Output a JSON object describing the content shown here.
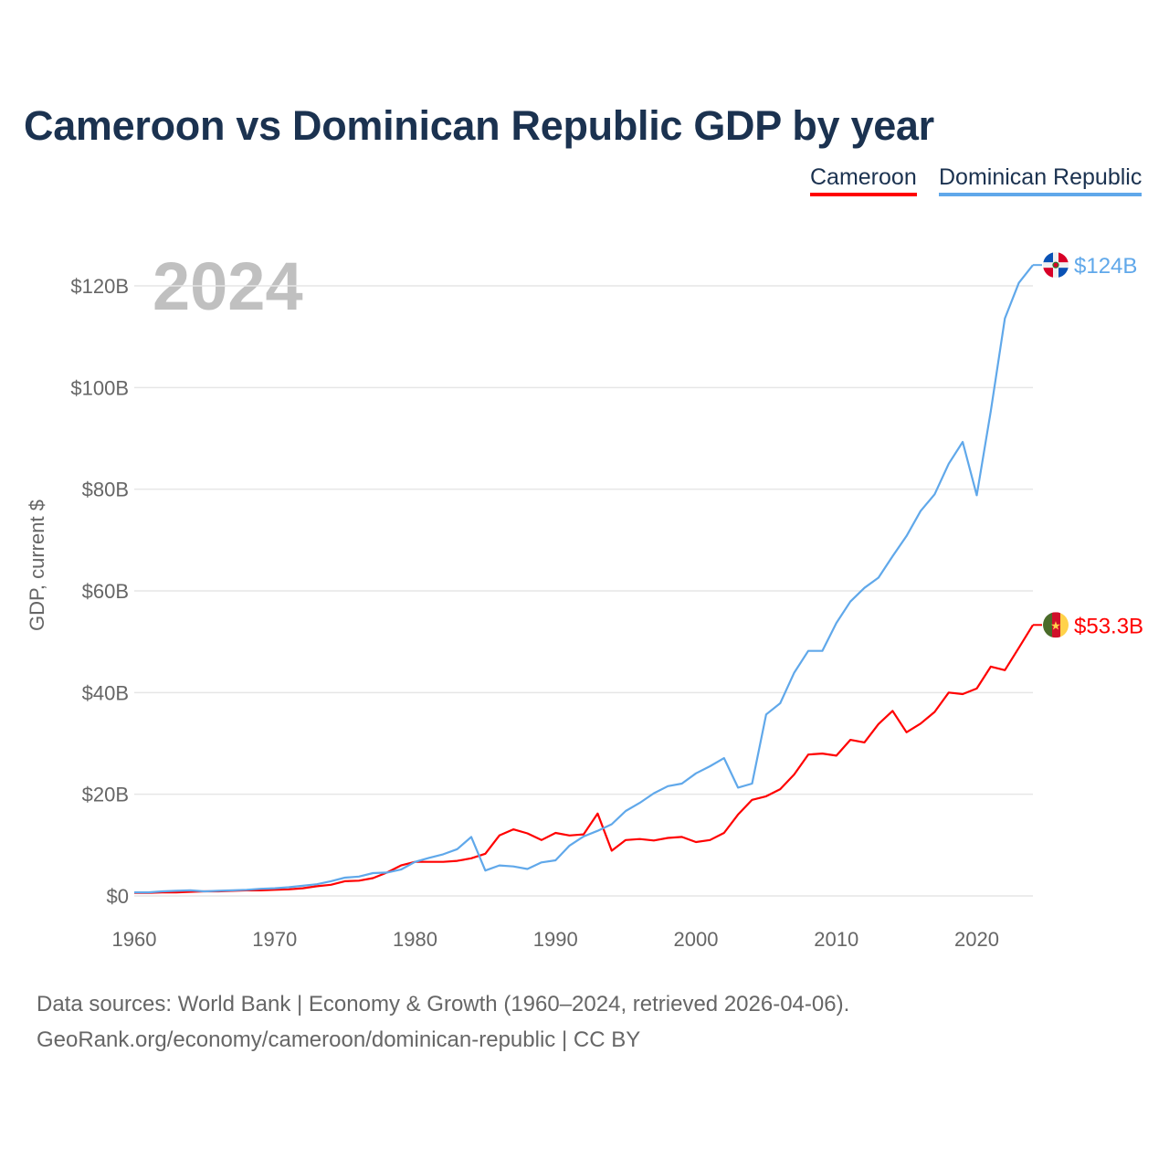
{
  "title": "Cameroon vs Dominican Republic GDP by year",
  "legend": [
    {
      "name": "Cameroon",
      "color": "#ff0000"
    },
    {
      "name": "Dominican Republic",
      "color": "#60a8ea"
    }
  ],
  "footer": {
    "source": "Data sources: World Bank | Economy & Growth (1960–2024, retrieved 2026-04-06).",
    "license": "GeoRank.org/economy/cameroon/dominican-republic | CC BY"
  },
  "chart_data": {
    "type": "line",
    "title": "Cameroon vs Dominican Republic GDP by year",
    "year_label": "2024",
    "xlabel": "",
    "ylabel": "GDP, current $",
    "xlim": [
      1960,
      2024
    ],
    "ylim": [
      0,
      120
    ],
    "xticks": [
      1960,
      1970,
      1980,
      1990,
      2000,
      2010,
      2020
    ],
    "yticks": [
      0,
      20,
      40,
      60,
      80,
      100,
      120
    ],
    "ytick_labels": [
      "$0",
      "$20B",
      "$40B",
      "$60B",
      "$80B",
      "$100B",
      "$120B"
    ],
    "grid": true,
    "legend_position": "top-right",
    "x_start": 1960,
    "series": [
      {
        "name": "Cameroon",
        "color": "#ff0000",
        "end_label": "$53.3B",
        "flag": "cameroon-flag",
        "values": [
          0.6,
          0.6,
          0.7,
          0.7,
          0.8,
          0.9,
          0.9,
          1.0,
          1.1,
          1.1,
          1.2,
          1.3,
          1.5,
          1.9,
          2.2,
          2.9,
          3.0,
          3.5,
          4.6,
          6.0,
          6.7,
          6.7,
          6.7,
          6.9,
          7.4,
          8.3,
          11.9,
          13.1,
          12.3,
          11.0,
          12.4,
          11.9,
          12.1,
          16.2,
          8.9,
          11.0,
          11.2,
          10.9,
          11.4,
          11.6,
          10.6,
          11.0,
          12.4,
          16.0,
          18.9,
          19.6,
          21.0,
          23.9,
          27.8,
          28.0,
          27.6,
          30.7,
          30.2,
          33.8,
          36.4,
          32.2,
          33.9,
          36.2,
          40.0,
          39.7,
          40.8,
          45.1,
          44.4,
          48.8,
          53.3
        ]
      },
      {
        "name": "Dominican Republic",
        "color": "#60a8ea",
        "end_label": "$124B",
        "flag": "dominican-republic-flag",
        "values": [
          0.7,
          0.7,
          0.9,
          1.0,
          1.1,
          0.9,
          1.0,
          1.1,
          1.2,
          1.4,
          1.5,
          1.7,
          2.0,
          2.3,
          2.9,
          3.6,
          3.8,
          4.5,
          4.6,
          5.2,
          6.7,
          7.5,
          8.2,
          9.2,
          11.6,
          5.0,
          6.0,
          5.8,
          5.3,
          6.6,
          7.0,
          9.9,
          11.7,
          12.8,
          14.1,
          16.7,
          18.3,
          20.2,
          21.6,
          22.1,
          24.1,
          25.5,
          27.1,
          21.3,
          22.1,
          35.7,
          37.9,
          43.9,
          48.2,
          48.2,
          53.7,
          57.9,
          60.6,
          62.6,
          66.8,
          70.8,
          75.7,
          79.0,
          85.0,
          89.3,
          78.8,
          95.4,
          113.6,
          120.6,
          124.1
        ]
      }
    ]
  }
}
